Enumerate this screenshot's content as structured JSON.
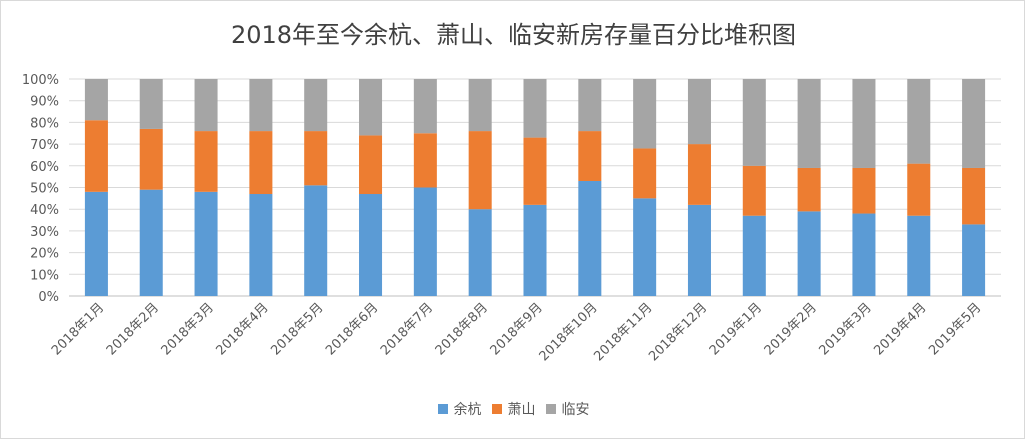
{
  "chart_data": {
    "type": "bar",
    "stacked": true,
    "percent_stacked": true,
    "title": "2018年至今余杭、萧山、临安新房存量百分比堆积图",
    "categories": [
      "2018年1月",
      "2018年2月",
      "2018年3月",
      "2018年4月",
      "2018年5月",
      "2018年6月",
      "2018年7月",
      "2018年8月",
      "2018年9月",
      "2018年10月",
      "2018年11月",
      "2018年12月",
      "2019年1月",
      "2019年2月",
      "2019年3月",
      "2019年4月",
      "2019年5月"
    ],
    "y_ticks": [
      "0%",
      "10%",
      "20%",
      "30%",
      "40%",
      "50%",
      "60%",
      "70%",
      "80%",
      "90%",
      "100%"
    ],
    "ylim": [
      0,
      100
    ],
    "grid": true,
    "legend_position": "bottom",
    "series": [
      {
        "name": "余杭",
        "color": "#5b9bd5",
        "values": [
          48,
          49,
          48,
          47,
          51,
          47,
          50,
          40,
          42,
          53,
          45,
          42,
          37,
          39,
          38,
          37,
          33
        ]
      },
      {
        "name": "萧山",
        "color": "#ed7d31",
        "values": [
          33,
          28,
          28,
          29,
          25,
          27,
          25,
          36,
          31,
          23,
          23,
          28,
          23,
          20,
          21,
          24,
          26
        ]
      },
      {
        "name": "临安",
        "color": "#a5a5a5",
        "values": [
          19,
          23,
          24,
          24,
          24,
          26,
          25,
          24,
          27,
          24,
          32,
          30,
          40,
          41,
          41,
          39,
          41
        ]
      }
    ]
  }
}
